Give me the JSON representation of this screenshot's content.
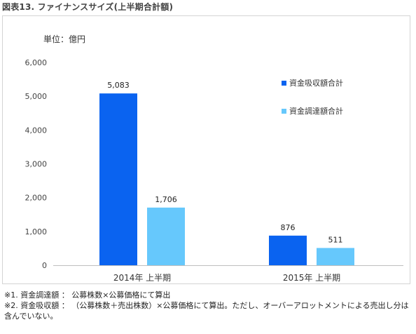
{
  "figure_title": "図表13. ファイナンスサイズ(上半期合計額)",
  "unit_label": "単位：億円",
  "colors": {
    "series1": "#0a63f0",
    "series2": "#66c8fc",
    "axis": "#bfbfbf",
    "grid": "#e6e6e6",
    "tick_text": "#444444"
  },
  "chart_data": {
    "type": "bar",
    "categories": [
      "2014年 上半期",
      "2015年 上半期"
    ],
    "series": [
      {
        "name": "資金吸収額合計",
        "values": [
          5083,
          876
        ],
        "labels": [
          "5,083",
          "876"
        ]
      },
      {
        "name": "資金調達額合計",
        "values": [
          1706,
          511
        ],
        "labels": [
          "1,706",
          "511"
        ]
      }
    ],
    "ylim": [
      0,
      6000
    ],
    "yticks": [
      0,
      1000,
      2000,
      3000,
      4000,
      5000,
      6000
    ],
    "ytick_labels": [
      "0",
      "1,000",
      "2,000",
      "3,000",
      "4,000",
      "5,000",
      "6,000"
    ],
    "legend": "right",
    "grid": false
  },
  "notes": [
    "※1. 資金調達額 ： 公募株数×公募価格にて算出",
    "※2. 資金吸収額 ： （公募株数＋売出株数）×公募価格にて算出。ただし、オーバーアロットメントによる売出し分は含んでいない。"
  ]
}
